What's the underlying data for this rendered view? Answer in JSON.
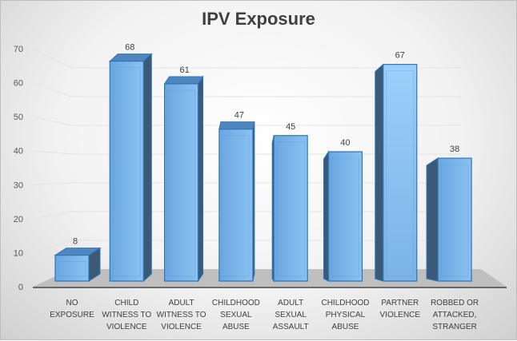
{
  "chart_data": {
    "type": "bar",
    "style": "3d-column",
    "title": "IPV Exposure",
    "categories": [
      [
        "NO",
        "EXPOSURE"
      ],
      [
        "CHILD",
        "WITNESS TO",
        "VIOLENCE"
      ],
      [
        "ADULT",
        "WITNESS TO",
        "VIOLENCE"
      ],
      [
        "CHILDHOOD",
        "SEXUAL",
        "ABUSE"
      ],
      [
        "ADULT",
        "SEXUAL",
        "ASSAULT"
      ],
      [
        "CHILDHOOD",
        "PHYSICAL",
        "ABUSE"
      ],
      [
        "PARTNER",
        "VIOLENCE"
      ],
      [
        "ROBBED OR",
        "ATTACKED,",
        "STRANGER"
      ]
    ],
    "values": [
      8,
      68,
      61,
      47,
      45,
      40,
      67,
      38
    ],
    "ylim": [
      0,
      70
    ],
    "yticks": [
      0,
      10,
      20,
      30,
      40,
      50,
      60,
      70
    ],
    "grid": true,
    "legend": "none",
    "data_labels": true,
    "colors": {
      "bar": "#6fa8dc",
      "bar_edge": "#2e75b6",
      "bar_side": "#3c5a78",
      "floor": "#bfbfbf"
    }
  }
}
